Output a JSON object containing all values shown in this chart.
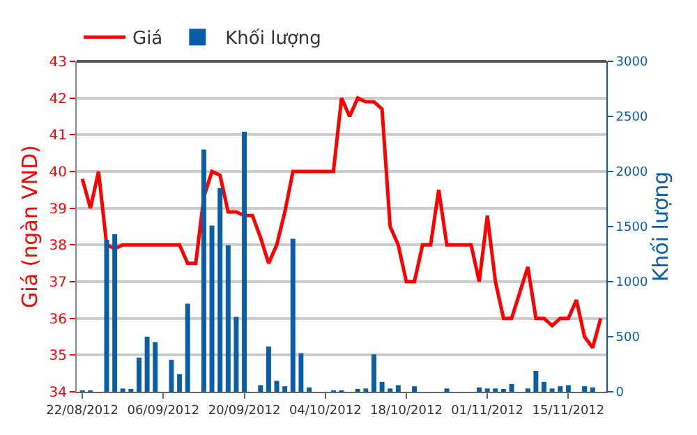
{
  "chart_data": {
    "type": "line",
    "ylabel": "Giá (ngàn VND)",
    "y2label": "Khối lượng",
    "categories": [
      "22/08/2012",
      null,
      null,
      null,
      null,
      null,
      null,
      null,
      null,
      null,
      "06/09/2012",
      null,
      null,
      null,
      null,
      null,
      null,
      null,
      null,
      null,
      "20/09/2012",
      null,
      null,
      null,
      null,
      null,
      null,
      null,
      null,
      null,
      "04/10/2012",
      null,
      null,
      null,
      null,
      null,
      null,
      null,
      null,
      null,
      "18/10/2012",
      null,
      null,
      null,
      null,
      null,
      null,
      null,
      null,
      null,
      "01/11/2012",
      null,
      null,
      null,
      null,
      null,
      null,
      null,
      null,
      null,
      "15/11/2012",
      null,
      null,
      null,
      null
    ],
    "series": [
      {
        "name": "Khối lượng",
        "type": "bar",
        "axis": "y2",
        "color": "#0a5ea8",
        "values": [
          10,
          10,
          null,
          1380,
          1430,
          30,
          20,
          310,
          500,
          450,
          null,
          290,
          160,
          800,
          null,
          2200,
          1510,
          1850,
          1330,
          680,
          2360,
          null,
          60,
          410,
          100,
          50,
          1390,
          350,
          40,
          null,
          null,
          10,
          10,
          null,
          20,
          30,
          340,
          90,
          30,
          60,
          null,
          50,
          null,
          null,
          null,
          30,
          null,
          null,
          null,
          40,
          30,
          30,
          20,
          70,
          null,
          30,
          190,
          90,
          30,
          50,
          60,
          null,
          50,
          40,
          null
        ]
      },
      {
        "name": "Giá",
        "color": "#ff0000",
        "values": [
          39.8,
          39.0,
          40.0,
          38.0,
          37.9,
          38.0,
          38.0,
          38.0,
          38.0,
          38.0,
          38.0,
          38.0,
          38.0,
          37.5,
          37.5,
          39.3,
          40.0,
          39.9,
          38.9,
          38.9,
          38.8,
          38.8,
          38.2,
          37.5,
          38.0,
          38.9,
          40.0,
          40.0,
          40.0,
          40.0,
          40.0,
          40.0,
          42.0,
          41.5,
          42.0,
          41.9,
          41.9,
          41.7,
          38.5,
          38.0,
          37.0,
          37.0,
          38.0,
          38.0,
          39.5,
          38.0,
          38.0,
          38.0,
          38.0,
          37.0,
          38.8,
          37.0,
          36.0,
          36.0,
          36.7,
          37.4,
          36.0,
          36.0,
          35.8,
          36.0,
          36.0,
          36.5,
          35.5,
          35.2,
          36.0
        ]
      }
    ],
    "ylim": [
      34,
      43
    ],
    "yticks": [
      34,
      35,
      36,
      37,
      38,
      39,
      40,
      41,
      42,
      43
    ],
    "y2lim": [
      0,
      3000
    ],
    "y2ticks": [
      0,
      500,
      1000,
      1500,
      2000,
      2500,
      3000
    ],
    "grid": "y",
    "legend": "top left",
    "marker": "none",
    "line_style": "solid"
  }
}
